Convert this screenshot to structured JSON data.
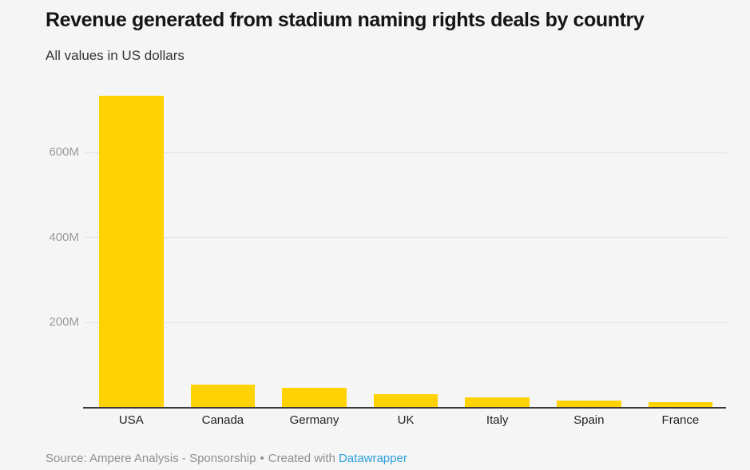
{
  "header": {
    "title": "Revenue generated from stadium naming rights deals by country",
    "subtitle": "All values in US dollars"
  },
  "footer": {
    "source_text": "Source: Ampere Analysis - Sponsorship",
    "separator": "•",
    "created_text": "Created with",
    "link_text": "Datawrapper"
  },
  "colors": {
    "background": "#f5f5f6",
    "bar": "#ffd203",
    "gridline": "#e2e2e2",
    "axis_line": "#3a3a3a",
    "y_tick_label": "#9a9a9a",
    "x_label": "#222222",
    "title": "#151515",
    "subtitle": "#333333",
    "footer_text": "#8f8f8f",
    "link": "#2d9fd9"
  },
  "chart_data": {
    "type": "bar",
    "title": "Revenue generated from stadium naming rights deals by country",
    "subtitle": "All values in US dollars",
    "categories": [
      "USA",
      "Canada",
      "Germany",
      "UK",
      "Italy",
      "Spain",
      "France"
    ],
    "values": [
      733,
      54,
      47,
      31,
      24,
      16,
      13
    ],
    "unit": "M USD",
    "xlabel": "",
    "ylabel": "",
    "yticks": [
      200,
      400,
      600
    ],
    "ytick_labels": [
      "200M",
      "400M",
      "600M"
    ],
    "ylim": [
      0,
      752
    ],
    "grid": true,
    "legend": false,
    "bar_color": "#ffd203",
    "source": "Ampere Analysis - Sponsorship"
  }
}
